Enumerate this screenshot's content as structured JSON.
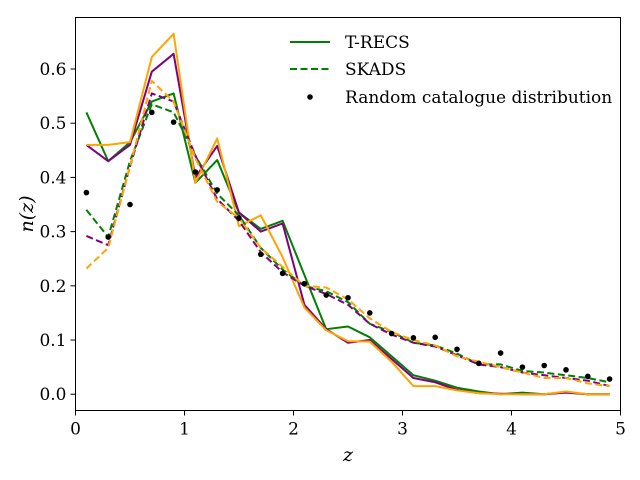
{
  "chart_data": {
    "type": "line",
    "title": "",
    "xlabel": "z",
    "ylabel": "n(z)",
    "xlim": [
      0,
      5
    ],
    "ylim": [
      -0.03,
      0.695
    ],
    "xticks": [
      0,
      1,
      2,
      3,
      4,
      5
    ],
    "xtick_labels": [
      "0",
      "1",
      "2",
      "3",
      "4",
      "5"
    ],
    "yticks": [
      0.0,
      0.1,
      0.2,
      0.3,
      0.4,
      0.5,
      0.6
    ],
    "ytick_labels": [
      "0.0",
      "0.1",
      "0.2",
      "0.3",
      "0.4",
      "0.5",
      "0.6"
    ],
    "grid": false,
    "legend_position": "top-right",
    "legend": [
      {
        "label": "T-RECS",
        "style": "solid",
        "color": "#008000"
      },
      {
        "label": "SKADS",
        "style": "dashed",
        "color": "#008000"
      },
      {
        "label": "Random catalogue distribution",
        "style": "marker",
        "color": "#000000"
      }
    ],
    "x": [
      0.1,
      0.3,
      0.5,
      0.7,
      0.9,
      1.1,
      1.3,
      1.5,
      1.7,
      1.9,
      2.1,
      2.3,
      2.5,
      2.7,
      2.9,
      3.1,
      3.3,
      3.5,
      3.7,
      3.9,
      4.1,
      4.3,
      4.5,
      4.7,
      4.9
    ],
    "series": [
      {
        "color": "#008000",
        "style": "solid",
        "values": [
          0.52,
          0.43,
          0.465,
          0.54,
          0.555,
          0.39,
          0.432,
          0.335,
          0.305,
          0.32,
          0.22,
          0.12,
          0.125,
          0.105,
          0.07,
          0.035,
          0.025,
          0.012,
          0.005,
          0.0,
          0.003,
          0.0,
          0.004,
          0.0,
          0.0
        ]
      },
      {
        "color": "#800080",
        "style": "solid",
        "values": [
          0.46,
          0.43,
          0.46,
          0.595,
          0.628,
          0.4,
          0.458,
          0.335,
          0.3,
          0.315,
          0.165,
          0.12,
          0.095,
          0.1,
          0.065,
          0.03,
          0.022,
          0.008,
          0.002,
          0.001,
          0.0,
          0.0,
          0.003,
          0.0,
          0.0
        ]
      },
      {
        "color": "#FFA500",
        "style": "solid",
        "values": [
          0.46,
          0.46,
          0.465,
          0.622,
          0.665,
          0.39,
          0.472,
          0.31,
          0.33,
          0.253,
          0.16,
          0.118,
          0.098,
          0.097,
          0.06,
          0.015,
          0.015,
          0.007,
          0.002,
          0.0,
          0.0,
          0.0,
          0.005,
          0.0,
          0.0
        ]
      },
      {
        "color": "#008000",
        "style": "dashed",
        "values": [
          0.34,
          0.29,
          0.43,
          0.535,
          0.52,
          0.44,
          0.37,
          0.33,
          0.27,
          0.23,
          0.2,
          0.19,
          0.17,
          0.13,
          0.115,
          0.095,
          0.09,
          0.075,
          0.055,
          0.055,
          0.043,
          0.04,
          0.035,
          0.03,
          0.022
        ]
      },
      {
        "color": "#800080",
        "style": "dashed",
        "values": [
          0.292,
          0.275,
          0.42,
          0.555,
          0.54,
          0.44,
          0.36,
          0.32,
          0.262,
          0.225,
          0.2,
          0.185,
          0.165,
          0.13,
          0.11,
          0.095,
          0.088,
          0.072,
          0.055,
          0.05,
          0.04,
          0.035,
          0.03,
          0.025,
          0.015
        ]
      },
      {
        "color": "#FFA500",
        "style": "dashed",
        "values": [
          0.232,
          0.27,
          0.42,
          0.578,
          0.54,
          0.435,
          0.355,
          0.325,
          0.27,
          0.235,
          0.2,
          0.197,
          0.175,
          0.14,
          0.115,
          0.1,
          0.09,
          0.07,
          0.06,
          0.05,
          0.04,
          0.03,
          0.03,
          0.02,
          0.015
        ]
      }
    ],
    "points": {
      "color": "#000000",
      "x": [
        0.1,
        0.3,
        0.5,
        0.7,
        0.9,
        1.1,
        1.3,
        1.5,
        1.7,
        1.9,
        2.1,
        2.3,
        2.5,
        2.7,
        2.9,
        3.1,
        3.3,
        3.5,
        3.7,
        3.9,
        4.1,
        4.3,
        4.5,
        4.7,
        4.9
      ],
      "y": [
        0.372,
        0.29,
        0.35,
        0.52,
        0.502,
        0.41,
        0.377,
        0.325,
        0.258,
        0.223,
        0.204,
        0.183,
        0.178,
        0.15,
        0.112,
        0.104,
        0.105,
        0.083,
        0.057,
        0.076,
        0.05,
        0.053,
        0.045,
        0.033,
        0.028
      ]
    }
  }
}
